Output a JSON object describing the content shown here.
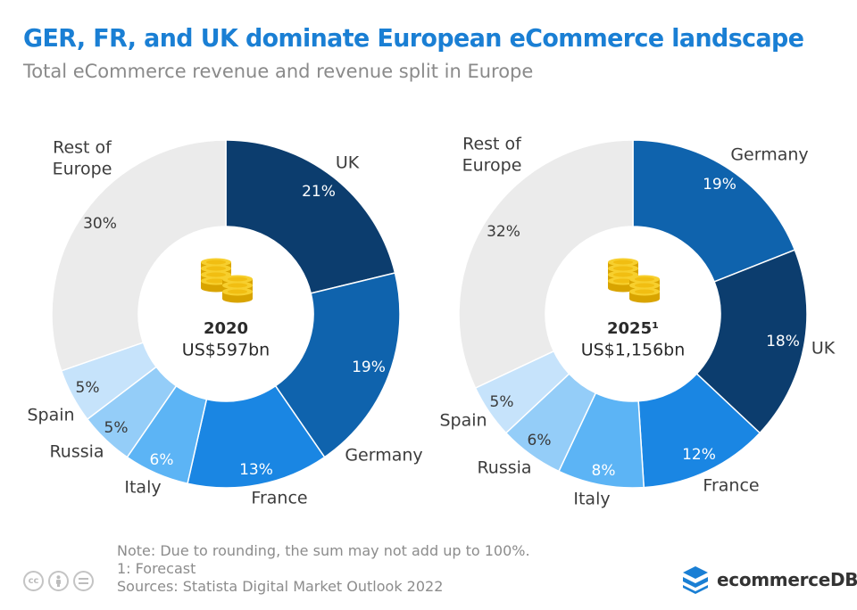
{
  "title": "GER, FR, and UK dominate European eCommerce landscape",
  "subtitle": "Total eCommerce revenue and revenue split in Europe",
  "chart_data": [
    {
      "type": "pie",
      "center_label": "2020",
      "center_value": "US$597bn",
      "slices": [
        {
          "label": "UK",
          "value": 21,
          "pct_label": "21%",
          "color": "#0c3d6e"
        },
        {
          "label": "Germany",
          "value": 19,
          "pct_label": "19%",
          "color": "#0f63ad"
        },
        {
          "label": "France",
          "value": 13,
          "pct_label": "13%",
          "color": "#1a86e3"
        },
        {
          "label": "Italy",
          "value": 6,
          "pct_label": "6%",
          "color": "#5cb4f5"
        },
        {
          "label": "Russia",
          "value": 5,
          "pct_label": "5%",
          "color": "#94cdf8"
        },
        {
          "label": "Spain",
          "value": 5,
          "pct_label": "5%",
          "color": "#c6e3fb"
        },
        {
          "label": "Rest of Europe",
          "value": 30,
          "pct_label": "30%",
          "color": "#ebebeb"
        }
      ]
    },
    {
      "type": "pie",
      "center_label": "2025¹",
      "center_value": "US$1,156bn",
      "slices": [
        {
          "label": "Germany",
          "value": 19,
          "pct_label": "19%",
          "color": "#0f63ad"
        },
        {
          "label": "UK",
          "value": 18,
          "pct_label": "18%",
          "color": "#0c3d6e"
        },
        {
          "label": "France",
          "value": 12,
          "pct_label": "12%",
          "color": "#1a86e3"
        },
        {
          "label": "Italy",
          "value": 8,
          "pct_label": "8%",
          "color": "#5cb4f5"
        },
        {
          "label": "Russia",
          "value": 6,
          "pct_label": "6%",
          "color": "#94cdf8"
        },
        {
          "label": "Spain",
          "value": 5,
          "pct_label": "5%",
          "color": "#c6e3fb"
        },
        {
          "label": "Rest of Europe",
          "value": 32,
          "pct_label": "32%",
          "color": "#ebebeb"
        }
      ]
    }
  ],
  "notes": [
    "Note: Due to rounding, the sum may not add up to 100%.",
    "1: Forecast",
    "Sources: Statista Digital Market Outlook 2022"
  ],
  "brand": {
    "name": "ecommerceDB",
    "color": "#1a7fd4"
  },
  "license_icons": [
    "cc",
    "by",
    "nd"
  ]
}
